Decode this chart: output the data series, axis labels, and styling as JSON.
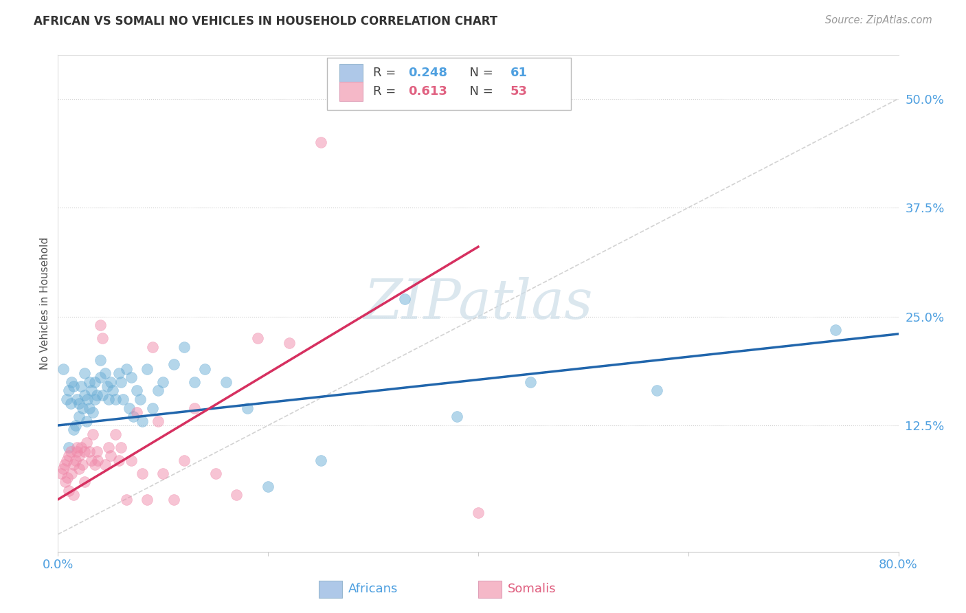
{
  "title": "AFRICAN VS SOMALI NO VEHICLES IN HOUSEHOLD CORRELATION CHART",
  "source": "Source: ZipAtlas.com",
  "ylabel": "No Vehicles in Household",
  "ytick_labels": [
    "12.5%",
    "25.0%",
    "37.5%",
    "50.0%"
  ],
  "ytick_values": [
    0.125,
    0.25,
    0.375,
    0.5
  ],
  "xlim": [
    0.0,
    0.8
  ],
  "ylim": [
    -0.02,
    0.55
  ],
  "africans_R": 0.248,
  "africans_N": 61,
  "somalis_R": 0.613,
  "somalis_N": 53,
  "africans_color": "#6baed6",
  "somalis_color": "#f08aaa",
  "africans_line_color": "#2166ac",
  "somalis_line_color": "#d63060",
  "diagonal_line_color": "#c8c8c8",
  "watermark": "ZIPatlas",
  "watermark_color": "#ccdde8",
  "legend_box_africans": "#aec8e8",
  "legend_box_somalis": "#f5b8c8",
  "africans_line_x0": 0.0,
  "africans_line_y0": 0.125,
  "africans_line_x1": 0.8,
  "africans_line_y1": 0.23,
  "somalis_line_x0": 0.0,
  "somalis_line_y0": 0.04,
  "somalis_line_x1": 0.4,
  "somalis_line_y1": 0.33,
  "africans_x": [
    0.005,
    0.008,
    0.01,
    0.01,
    0.012,
    0.013,
    0.015,
    0.015,
    0.017,
    0.018,
    0.02,
    0.02,
    0.022,
    0.023,
    0.025,
    0.025,
    0.027,
    0.028,
    0.03,
    0.03,
    0.032,
    0.033,
    0.035,
    0.035,
    0.037,
    0.04,
    0.04,
    0.042,
    0.045,
    0.047,
    0.048,
    0.05,
    0.052,
    0.055,
    0.058,
    0.06,
    0.062,
    0.065,
    0.068,
    0.07,
    0.072,
    0.075,
    0.078,
    0.08,
    0.085,
    0.09,
    0.095,
    0.1,
    0.11,
    0.12,
    0.13,
    0.14,
    0.16,
    0.18,
    0.2,
    0.25,
    0.33,
    0.38,
    0.45,
    0.57,
    0.74
  ],
  "africans_y": [
    0.19,
    0.155,
    0.1,
    0.165,
    0.15,
    0.175,
    0.12,
    0.17,
    0.125,
    0.155,
    0.135,
    0.15,
    0.17,
    0.145,
    0.16,
    0.185,
    0.13,
    0.155,
    0.175,
    0.145,
    0.165,
    0.14,
    0.155,
    0.175,
    0.16,
    0.2,
    0.18,
    0.16,
    0.185,
    0.17,
    0.155,
    0.175,
    0.165,
    0.155,
    0.185,
    0.175,
    0.155,
    0.19,
    0.145,
    0.18,
    0.135,
    0.165,
    0.155,
    0.13,
    0.19,
    0.145,
    0.165,
    0.175,
    0.195,
    0.215,
    0.175,
    0.19,
    0.175,
    0.145,
    0.055,
    0.085,
    0.27,
    0.135,
    0.175,
    0.165,
    0.235
  ],
  "somalis_x": [
    0.003,
    0.005,
    0.006,
    0.007,
    0.008,
    0.009,
    0.01,
    0.01,
    0.012,
    0.013,
    0.015,
    0.015,
    0.017,
    0.018,
    0.018,
    0.02,
    0.02,
    0.022,
    0.023,
    0.025,
    0.025,
    0.027,
    0.03,
    0.032,
    0.033,
    0.035,
    0.037,
    0.038,
    0.04,
    0.042,
    0.045,
    0.048,
    0.05,
    0.055,
    0.058,
    0.06,
    0.065,
    0.07,
    0.075,
    0.08,
    0.085,
    0.09,
    0.095,
    0.1,
    0.11,
    0.12,
    0.13,
    0.15,
    0.17,
    0.19,
    0.22,
    0.25,
    0.4
  ],
  "somalis_y": [
    0.07,
    0.075,
    0.08,
    0.06,
    0.085,
    0.065,
    0.09,
    0.05,
    0.095,
    0.07,
    0.08,
    0.045,
    0.085,
    0.095,
    0.1,
    0.09,
    0.075,
    0.1,
    0.08,
    0.095,
    0.06,
    0.105,
    0.095,
    0.085,
    0.115,
    0.08,
    0.095,
    0.085,
    0.24,
    0.225,
    0.08,
    0.1,
    0.09,
    0.115,
    0.085,
    0.1,
    0.04,
    0.085,
    0.14,
    0.07,
    0.04,
    0.215,
    0.13,
    0.07,
    0.04,
    0.085,
    0.145,
    0.07,
    0.045,
    0.225,
    0.22,
    0.45,
    0.025
  ]
}
